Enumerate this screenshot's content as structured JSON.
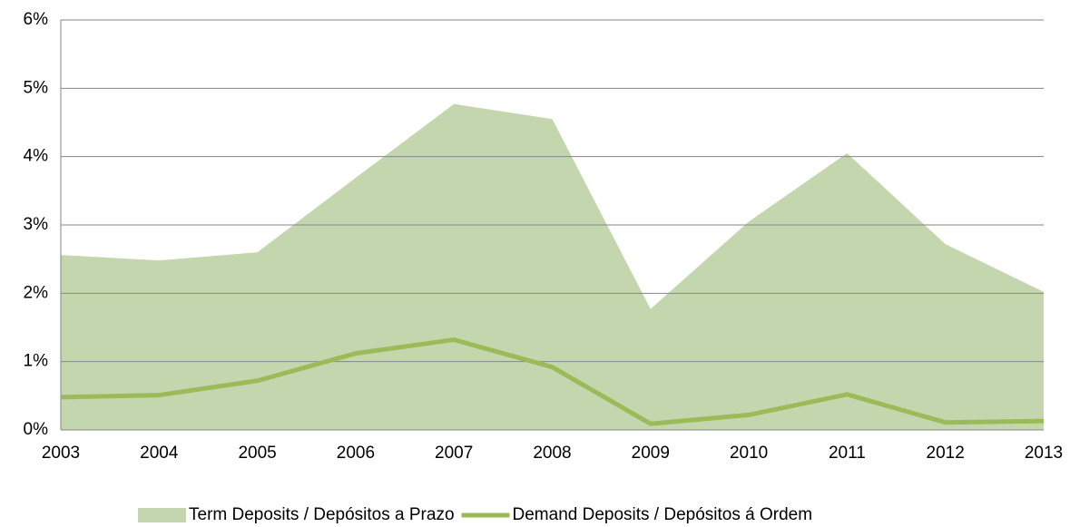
{
  "chart_data": {
    "type": "area",
    "categories": [
      "2003",
      "2004",
      "2005",
      "2006",
      "2007",
      "2008",
      "2009",
      "2010",
      "2011",
      "2012",
      "2013"
    ],
    "series": [
      {
        "name": "Term Deposits / Depósitos a Prazo",
        "type": "area",
        "color": "#c4d6ae",
        "values": [
          2.56,
          2.48,
          2.6,
          3.69,
          4.77,
          4.55,
          1.77,
          3.05,
          4.05,
          2.72,
          2.02
        ]
      },
      {
        "name": "Demand Deposits / Depósitos á Ordem",
        "type": "line",
        "color": "#9bbb59",
        "values": [
          0.48,
          0.51,
          0.72,
          1.12,
          1.32,
          0.92,
          0.09,
          0.22,
          0.52,
          0.11,
          0.13
        ]
      }
    ],
    "ylim": [
      0,
      6
    ],
    "yticks": [
      {
        "value": 0,
        "label": "0%"
      },
      {
        "value": 1,
        "label": "1%"
      },
      {
        "value": 2,
        "label": "2%"
      },
      {
        "value": 3,
        "label": "3%"
      },
      {
        "value": 4,
        "label": "4%"
      },
      {
        "value": 5,
        "label": "5%"
      },
      {
        "value": 6,
        "label": "6%"
      }
    ],
    "grid": true,
    "legend": "bottom"
  }
}
